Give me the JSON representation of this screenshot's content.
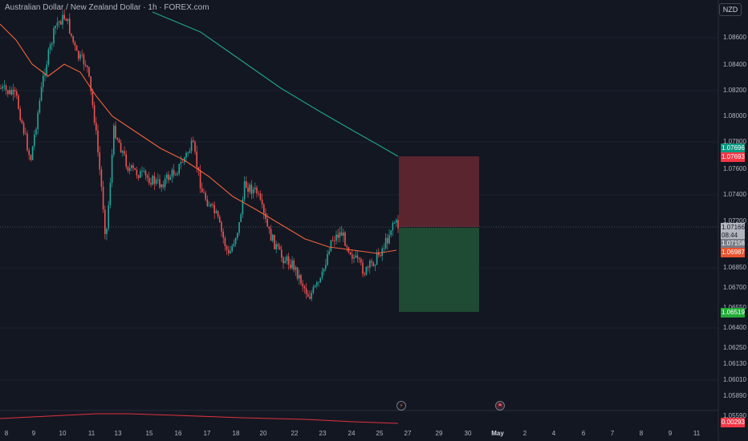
{
  "header": {
    "title": "Australian Dollar / New Zealand Dollar · 1h · FOREX.com",
    "currency": "NZD"
  },
  "price_axis": {
    "ticks": [
      "1.08600",
      "1.08400",
      "1.08200",
      "1.08000",
      "1.07800",
      "1.07600",
      "1.07400",
      "1.07200",
      "1.06850",
      "1.06700",
      "1.06550",
      "1.06400",
      "1.06250",
      "1.06130",
      "1.06010",
      "1.05890",
      "1.05590"
    ],
    "tags": [
      {
        "label": "1.07696",
        "color": "#089981"
      },
      {
        "label": "1.07693",
        "color": "#f23645"
      },
      {
        "label": "1.07166",
        "color": "#b2b5be"
      },
      {
        "label": "08:44",
        "color": "#b2b5be"
      },
      {
        "label": "1.07158",
        "color": "#787b86"
      },
      {
        "label": "1.06987",
        "color": "#e8532f"
      },
      {
        "label": "1.06519",
        "color": "#22ab38"
      },
      {
        "label": "0.00293",
        "color": "#f23645"
      }
    ]
  },
  "time_axis": {
    "labels": [
      "8",
      "9",
      "10",
      "11",
      "13",
      "15",
      "16",
      "17",
      "18",
      "20",
      "22",
      "23",
      "24",
      "25",
      "27",
      "29",
      "30",
      "May",
      "2",
      "4",
      "6",
      "7",
      "8",
      "9",
      "11"
    ]
  },
  "colors": {
    "up": "#26a69a",
    "down": "#ef5350",
    "ma_fast": "#f0643c",
    "ma_slow": "#1fa58c",
    "stop_zone": "#5b2530",
    "target_zone": "#1f4a33"
  },
  "icons": {
    "event_flash": "lightning-icon",
    "event_flag": "flag-icon"
  }
}
